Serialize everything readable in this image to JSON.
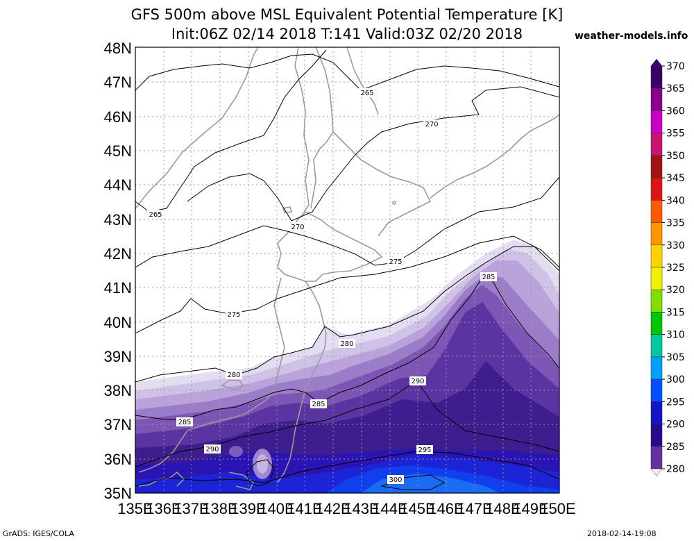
{
  "header": {
    "title_line1": "GFS 500m above MSL Equivalent Potential Temperature [K]",
    "title_line2": "Init:06Z 02/14 2018 T:141 Valid:03Z 02/20 2018",
    "brand": "weather-models.info"
  },
  "footer": {
    "left": "GrADS: IGES/COLA",
    "right": "2018-02-14-19:08"
  },
  "map": {
    "lat_labels": [
      "48N",
      "47N",
      "46N",
      "45N",
      "44N",
      "43N",
      "42N",
      "41N",
      "40N",
      "39N",
      "38N",
      "37N",
      "36N",
      "35N"
    ],
    "lon_labels": [
      "135E",
      "136E",
      "137E",
      "138E",
      "139E",
      "140E",
      "141E",
      "142E",
      "143E",
      "144E",
      "145E",
      "146E",
      "147E",
      "148E",
      "149E",
      "150E"
    ],
    "contour_labels": [
      {
        "text": "265",
        "id": "c265a"
      },
      {
        "text": "265",
        "id": "c265b"
      },
      {
        "text": "270",
        "id": "c270a"
      },
      {
        "text": "270",
        "id": "c270b"
      },
      {
        "text": "275",
        "id": "c275a"
      },
      {
        "text": "275",
        "id": "c275b"
      },
      {
        "text": "280",
        "id": "c280a"
      },
      {
        "text": "280",
        "id": "c280b"
      },
      {
        "text": "285",
        "id": "c285a"
      },
      {
        "text": "285",
        "id": "c285b"
      },
      {
        "text": "285",
        "id": "c285c"
      },
      {
        "text": "290",
        "id": "c290a"
      },
      {
        "text": "290",
        "id": "c290b"
      },
      {
        "text": "295",
        "id": "c295a"
      },
      {
        "text": "300",
        "id": "c300a"
      }
    ]
  },
  "colorbar": {
    "labels": [
      "370",
      "365",
      "360",
      "355",
      "350",
      "345",
      "340",
      "335",
      "330",
      "325",
      "320",
      "315",
      "310",
      "305",
      "300",
      "295",
      "290",
      "285",
      "280"
    ],
    "colors": [
      "#3c0064",
      "#8a008a",
      "#c800c8",
      "#c8146e",
      "#a01414",
      "#dc1414",
      "#ff5a00",
      "#ff9600",
      "#ffd200",
      "#f0f000",
      "#82dc00",
      "#00c800",
      "#00c8a0",
      "#00a0ff",
      "#0050ff",
      "#1414c8",
      "#280a8c",
      "#6432a0",
      "#c8b4e6"
    ]
  }
}
